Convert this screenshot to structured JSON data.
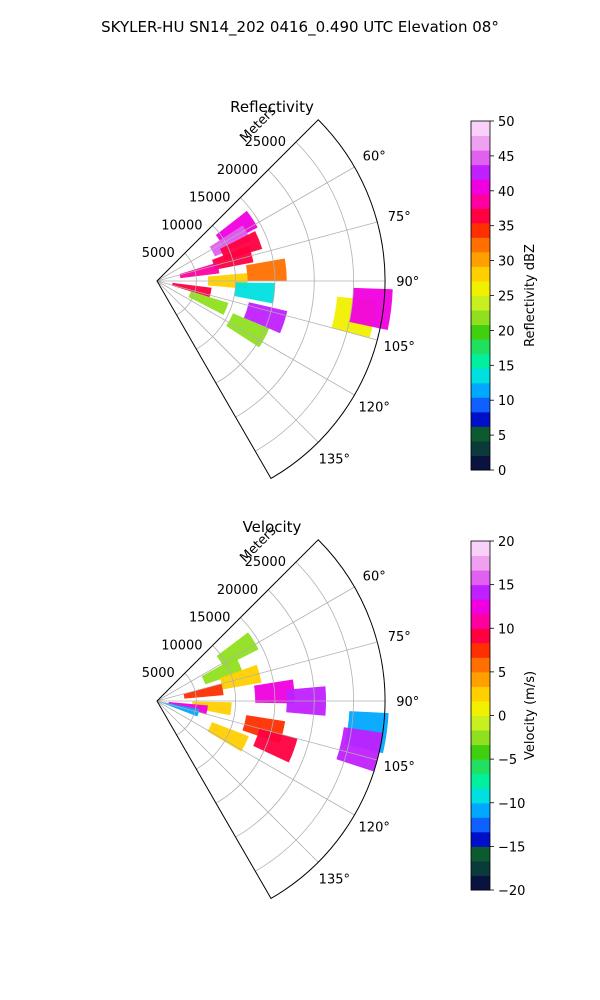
{
  "figure": {
    "suptitle": "SKYLER-HU  SN14_202  0416_0.490 UTC Elevation 08°"
  },
  "chart_data": [
    {
      "type": "heatmap",
      "projection": "polar-sector",
      "title": "Reflectivity",
      "radial_label": "Meters",
      "radial_ticks": [
        "5000",
        "10000",
        "15000",
        "20000",
        "25000"
      ],
      "radial_tick_values": [
        5000,
        10000,
        15000,
        20000,
        25000
      ],
      "r_max": 29000,
      "azimuth_range_deg": [
        45,
        150
      ],
      "azimuth_ticks": [
        "60°",
        "75°",
        "90°",
        "105°",
        "120°",
        "135°"
      ],
      "azimuth_tick_values": [
        60,
        75,
        90,
        105,
        120,
        135
      ],
      "grid": true,
      "colorbar": {
        "label": "Reflectivity dBZ",
        "vmin": 0,
        "vmax": 50,
        "ticks": [
          "0",
          "5",
          "10",
          "15",
          "20",
          "25",
          "30",
          "35",
          "40",
          "45",
          "50"
        ],
        "colors": [
          "#0a1240",
          "#0b3a3a",
          "#0d5a30",
          "#0010c8",
          "#1060ff",
          "#00a8ff",
          "#00e0e0",
          "#00f0a0",
          "#20e060",
          "#40d010",
          "#90e020",
          "#c8f020",
          "#f0f000",
          "#ffd000",
          "#ffa000",
          "#ff7000",
          "#ff3000",
          "#ff0040",
          "#ff00a0",
          "#f000e0",
          "#c020ff",
          "#e060f0",
          "#f0a0f0",
          "#f8d0f8"
        ]
      },
      "cells": [
        {
          "az": 57,
          "r": 12000,
          "value": 41
        },
        {
          "az": 62,
          "r": 10500,
          "value": 44
        },
        {
          "az": 68,
          "r": 11500,
          "value": 36
        },
        {
          "az": 74,
          "r": 10000,
          "value": 37
        },
        {
          "az": 78,
          "r": 5500,
          "value": 38
        },
        {
          "az": 85,
          "r": 14000,
          "value": 33
        },
        {
          "az": 90,
          "r": 9000,
          "value": 28
        },
        {
          "az": 96,
          "r": 12500,
          "value": 14
        },
        {
          "az": 102,
          "r": 4500,
          "value": 37
        },
        {
          "az": 108,
          "r": 14500,
          "value": 43
        },
        {
          "az": 112,
          "r": 7000,
          "value": 22
        },
        {
          "az": 118,
          "r": 13000,
          "value": 22
        },
        {
          "az": 100,
          "r": 25500,
          "value": 26
        },
        {
          "az": 97,
          "r": 27500,
          "value": 40
        }
      ]
    },
    {
      "type": "heatmap",
      "projection": "polar-sector",
      "title": "Velocity",
      "radial_label": "Meters",
      "radial_ticks": [
        "5000",
        "10000",
        "15000",
        "20000",
        "25000"
      ],
      "radial_tick_values": [
        5000,
        10000,
        15000,
        20000,
        25000
      ],
      "r_max": 29000,
      "azimuth_range_deg": [
        45,
        150
      ],
      "azimuth_ticks": [
        "60°",
        "75°",
        "90°",
        "105°",
        "120°",
        "135°"
      ],
      "azimuth_tick_values": [
        60,
        75,
        90,
        105,
        120,
        135
      ],
      "grid": true,
      "colorbar": {
        "label": "Velocity (m/s)",
        "vmin": -20,
        "vmax": 20,
        "ticks": [
          "−20",
          "−15",
          "−10",
          "−5",
          "0",
          "5",
          "10",
          "15",
          "20"
        ],
        "colors": [
          "#0a1240",
          "#0b3a3a",
          "#0d5a30",
          "#0010c8",
          "#1060ff",
          "#00a8ff",
          "#00e0e0",
          "#00f0a0",
          "#20e060",
          "#40d010",
          "#90e020",
          "#c8f020",
          "#f0f000",
          "#ffd000",
          "#ffa000",
          "#ff7000",
          "#ff3000",
          "#ff0040",
          "#ff00a0",
          "#f000e0",
          "#c020ff",
          "#e060f0",
          "#f0a0f0",
          "#f8d0f8"
        ]
      },
      "cells": [
        {
          "az": 58,
          "r": 12000,
          "value": -3
        },
        {
          "az": 66,
          "r": 9000,
          "value": -2
        },
        {
          "az": 75,
          "r": 11000,
          "value": 3
        },
        {
          "az": 80,
          "r": 6000,
          "value": 8
        },
        {
          "az": 86,
          "r": 15000,
          "value": 12
        },
        {
          "az": 90,
          "r": 19000,
          "value": 14
        },
        {
          "az": 96,
          "r": 7000,
          "value": 2
        },
        {
          "az": 100,
          "r": 4000,
          "value": 13
        },
        {
          "az": 104,
          "r": 14000,
          "value": 8
        },
        {
          "az": 110,
          "r": 16000,
          "value": 9
        },
        {
          "az": 116,
          "r": 10000,
          "value": 3
        },
        {
          "az": 98,
          "r": 27000,
          "value": -11
        },
        {
          "az": 103,
          "r": 26500,
          "value": 14
        },
        {
          "az": 106,
          "r": 3000,
          "value": -11
        }
      ]
    }
  ]
}
